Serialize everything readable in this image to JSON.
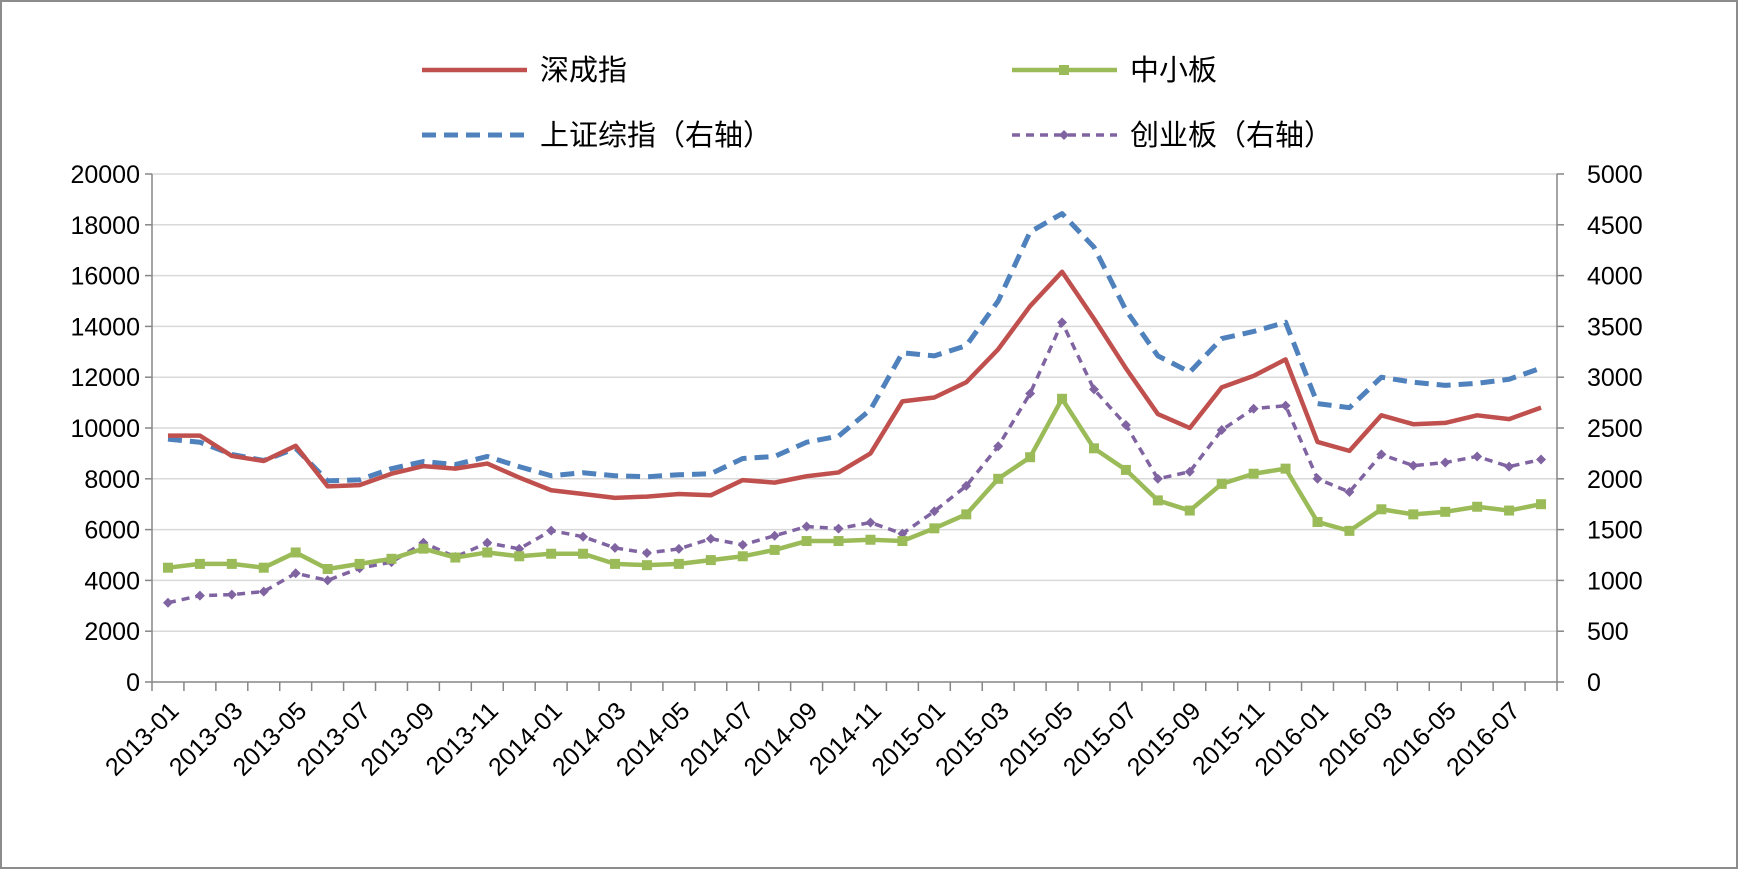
{
  "chart_data": {
    "type": "line",
    "title": "",
    "xlabel": "",
    "ylabel": "",
    "y_left": {
      "min": 0,
      "max": 20000,
      "ticks": [
        "0",
        "2000",
        "4000",
        "6000",
        "8000",
        "10000",
        "12000",
        "14000",
        "16000",
        "18000",
        "20000"
      ]
    },
    "y_right": {
      "min": 0,
      "max": 5000,
      "ticks": [
        "0",
        "500",
        "1000",
        "1500",
        "2000",
        "2500",
        "3000",
        "3500",
        "4000",
        "4500",
        "5000"
      ]
    },
    "grid": "horizontal",
    "legend_position": "top",
    "x": [
      "2013-01",
      "2013-02",
      "2013-03",
      "2013-04",
      "2013-05",
      "2013-06",
      "2013-07",
      "2013-08",
      "2013-09",
      "2013-10",
      "2013-11",
      "2013-12",
      "2014-01",
      "2014-02",
      "2014-03",
      "2014-04",
      "2014-05",
      "2014-06",
      "2014-07",
      "2014-08",
      "2014-09",
      "2014-10",
      "2014-11",
      "2014-12",
      "2015-01",
      "2015-02",
      "2015-03",
      "2015-04",
      "2015-05",
      "2015-06",
      "2015-07",
      "2015-08",
      "2015-09",
      "2015-10",
      "2015-11",
      "2015-12",
      "2016-01",
      "2016-02",
      "2016-03",
      "2016-04",
      "2016-05",
      "2016-06",
      "2016-07",
      "2016-08"
    ],
    "x_tick_labels": [
      "2013-01",
      "2013-03",
      "2013-05",
      "2013-07",
      "2013-09",
      "2013-11",
      "2014-01",
      "2014-03",
      "2014-05",
      "2014-07",
      "2014-09",
      "2014-11",
      "2015-01",
      "2015-03",
      "2015-05",
      "2015-07",
      "2015-09",
      "2015-11",
      "2016-01",
      "2016-03",
      "2016-05",
      "2016-07"
    ],
    "series": [
      {
        "name": "深成指",
        "axis": "left",
        "color": "#c0504d",
        "style": "solid",
        "values": [
          9700,
          9700,
          8900,
          8700,
          9300,
          7700,
          7750,
          8200,
          8500,
          8400,
          8600,
          8050,
          7550,
          7400,
          7250,
          7300,
          7400,
          7350,
          7950,
          7850,
          8100,
          8250,
          9000,
          11050,
          11200,
          11800,
          13100,
          14800,
          16150,
          14300,
          12350,
          10550,
          10000,
          11600,
          12050,
          12700,
          9450,
          9100,
          10500,
          10150,
          10200,
          10500,
          10350,
          10800
        ]
      },
      {
        "name": "中小板",
        "axis": "left",
        "color": "#9bbb59",
        "style": "solid-square-markers",
        "values": [
          4500,
          4650,
          4650,
          4500,
          5100,
          4450,
          4650,
          4850,
          5250,
          4900,
          5100,
          4950,
          5050,
          5050,
          4650,
          4600,
          4650,
          4800,
          4950,
          5200,
          5550,
          5550,
          5600,
          5550,
          6050,
          6600,
          8000,
          8850,
          11150,
          9200,
          8350,
          7150,
          6750,
          7800,
          8200,
          8400,
          6300,
          5950,
          6800,
          6600,
          6700,
          6900,
          6750,
          7000
        ]
      },
      {
        "name": "上证综指（右轴）",
        "axis": "right",
        "color": "#4f81bd",
        "style": "dashed",
        "values": [
          2390,
          2360,
          2240,
          2180,
          2300,
          1980,
          1990,
          2100,
          2170,
          2140,
          2220,
          2120,
          2030,
          2060,
          2030,
          2020,
          2040,
          2050,
          2200,
          2220,
          2360,
          2420,
          2680,
          3240,
          3210,
          3310,
          3750,
          4430,
          4610,
          4280,
          3660,
          3210,
          3050,
          3380,
          3450,
          3540,
          2740,
          2700,
          3000,
          2950,
          2920,
          2940,
          2980,
          3090
        ]
      },
      {
        "name": "创业板（右轴）",
        "axis": "right",
        "color": "#8064a2",
        "style": "dashed-diamond-markers",
        "values": [
          780,
          850,
          860,
          890,
          1070,
          1000,
          1120,
          1180,
          1370,
          1230,
          1370,
          1310,
          1490,
          1430,
          1320,
          1270,
          1310,
          1410,
          1350,
          1440,
          1530,
          1510,
          1570,
          1460,
          1680,
          1930,
          2320,
          2840,
          3540,
          2880,
          2530,
          2000,
          2070,
          2480,
          2690,
          2720,
          2000,
          1870,
          2240,
          2130,
          2160,
          2220,
          2120,
          2190
        ]
      }
    ]
  }
}
